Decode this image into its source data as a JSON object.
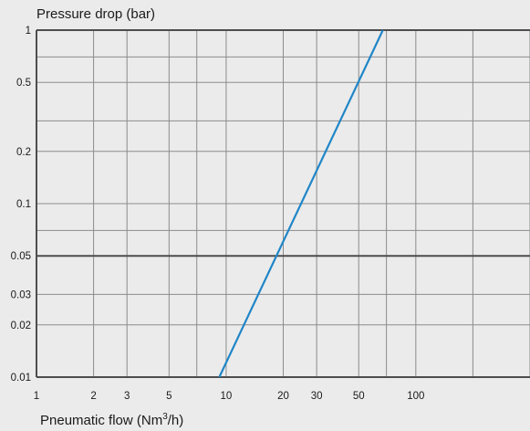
{
  "chart_data": {
    "type": "line",
    "xscale": "log",
    "yscale": "log",
    "grid": true,
    "ylabel": "Pressure drop (bar)",
    "xlabel": {
      "prefix": "Pneumatic flow (Nm",
      "sup": "3",
      "suffix": "/h)"
    },
    "xlim": [
      1,
      400
    ],
    "ylim": [
      0.01,
      1
    ],
    "x_ticks": [
      {
        "value": 1,
        "label": "1"
      },
      {
        "value": 2,
        "label": "2"
      },
      {
        "value": 3,
        "label": "3"
      },
      {
        "value": 5,
        "label": "5"
      },
      {
        "value": 10,
        "label": "10"
      },
      {
        "value": 20,
        "label": "20"
      },
      {
        "value": 30,
        "label": "30"
      },
      {
        "value": 50,
        "label": "50"
      },
      {
        "value": 100,
        "label": "100"
      }
    ],
    "x_gridlines": [
      2,
      3,
      5,
      7,
      10,
      20,
      30,
      50,
      70,
      100,
      200,
      400
    ],
    "y_ticks": [
      {
        "value": 1,
        "label": "1"
      },
      {
        "value": 0.5,
        "label": "0.5"
      },
      {
        "value": 0.2,
        "label": "0.2"
      },
      {
        "value": 0.1,
        "label": "0.1"
      },
      {
        "value": 0.05,
        "label": "0.05"
      },
      {
        "value": 0.03,
        "label": "0.03"
      },
      {
        "value": 0.02,
        "label": "0.02"
      },
      {
        "value": 0.01,
        "label": "0.01"
      }
    ],
    "y_gridlines": [
      0.02,
      0.03,
      0.05,
      0.07,
      0.1,
      0.2,
      0.3,
      0.5,
      0.7
    ],
    "series": [
      {
        "color": "#1f86c8",
        "points": [
          [
            9.2,
            0.01
          ],
          [
            67,
            1.0
          ]
        ]
      }
    ],
    "colors": {
      "background": "#ebebeb",
      "grid": "#8c8c8c",
      "axis": "#4d4d4d"
    }
  }
}
